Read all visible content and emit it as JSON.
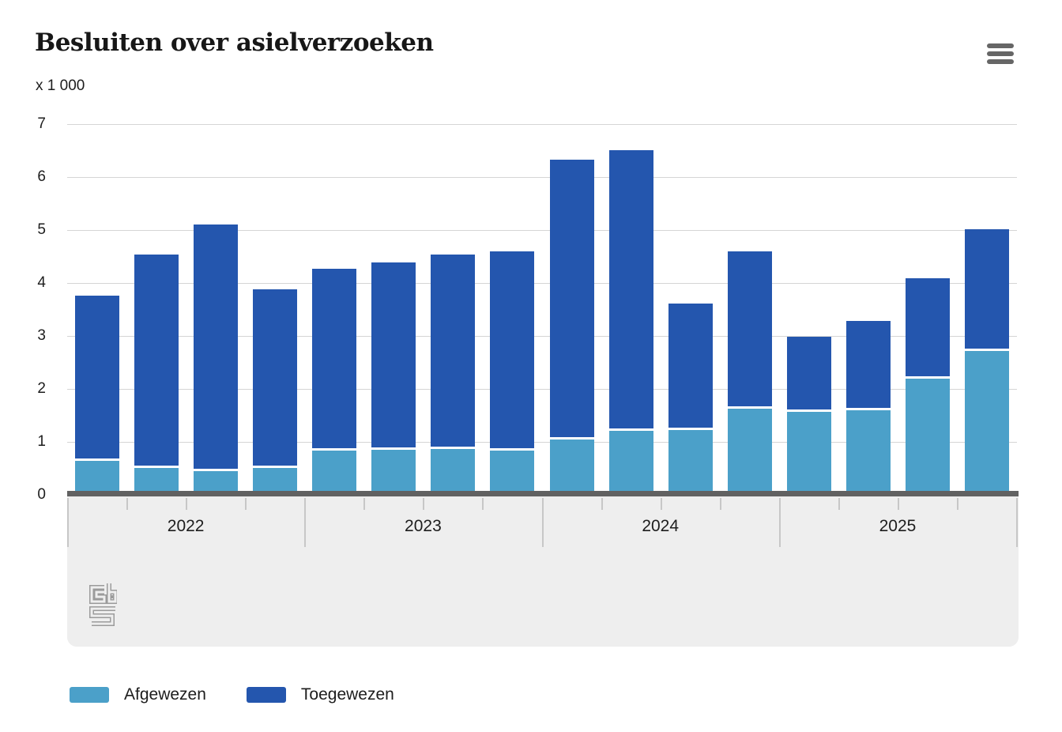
{
  "header": {
    "title": "Besluiten over asielverzoeken",
    "unit": "x 1 000"
  },
  "icons": {
    "menu": "hamburger-menu",
    "logo": "cbs-logo"
  },
  "legend": {
    "items": [
      {
        "label": "Afgewezen",
        "color": "#4BA0C9"
      },
      {
        "label": "Toegewezen",
        "color": "#2456AE"
      }
    ]
  },
  "chart_data": {
    "type": "bar",
    "stacked": true,
    "title": "Besluiten over asielverzoeken",
    "unit": "x 1 000",
    "xlabel": "",
    "ylabel": "x 1 000",
    "ylim": [
      0,
      7
    ],
    "y_ticks": [
      0,
      1,
      2,
      3,
      4,
      5,
      6,
      7
    ],
    "grid": true,
    "legend_position": "bottom",
    "years": [
      "2022",
      "2023",
      "2024",
      "2025"
    ],
    "categories": [
      "2022 Q1",
      "2022 Q2",
      "2022 Q3",
      "2022 Q4",
      "2023 Q1",
      "2023 Q2",
      "2023 Q3",
      "2023 Q4",
      "2024 Q1",
      "2024 Q2",
      "2024 Q3",
      "2024 Q4",
      "2025 Q1",
      "2025 Q2",
      "2025 Q3",
      "2025 Q4"
    ],
    "series": [
      {
        "name": "Afgewezen",
        "color": "#4BA0C9",
        "values": [
          0.64,
          0.51,
          0.45,
          0.51,
          0.83,
          0.85,
          0.87,
          0.83,
          1.04,
          1.21,
          1.22,
          1.63,
          1.57,
          1.59,
          2.19,
          2.72
        ]
      },
      {
        "name": "Toegewezen",
        "color": "#2456AE",
        "values": [
          3.12,
          4.03,
          4.65,
          3.37,
          3.44,
          3.54,
          3.67,
          3.76,
          5.29,
          5.3,
          2.39,
          2.96,
          1.42,
          1.69,
          1.9,
          2.3
        ]
      }
    ]
  }
}
